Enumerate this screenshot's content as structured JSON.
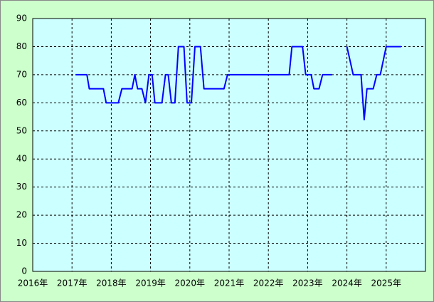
{
  "chart_data": {
    "type": "line",
    "xlim": [
      2016,
      2026
    ],
    "ylim": [
      0,
      90
    ],
    "xticks": [
      {
        "value": 2016,
        "label": "2016年"
      },
      {
        "value": 2017,
        "label": "2017年"
      },
      {
        "value": 2018,
        "label": "2018年"
      },
      {
        "value": 2019,
        "label": "2019年"
      },
      {
        "value": 2020,
        "label": "2020年"
      },
      {
        "value": 2021,
        "label": "2021年"
      },
      {
        "value": 2022,
        "label": "2022年"
      },
      {
        "value": 2023,
        "label": "2023年"
      },
      {
        "value": 2024,
        "label": "2024年"
      },
      {
        "value": 2025,
        "label": "2025年"
      }
    ],
    "yticks": [
      0,
      10,
      20,
      30,
      40,
      50,
      60,
      70,
      80,
      90
    ],
    "grid": true,
    "x": [
      2017.09,
      2017.38,
      2017.44,
      2017.8,
      2017.87,
      2018.18,
      2018.27,
      2018.53,
      2018.6,
      2018.67,
      2018.78,
      2018.87,
      2018.96,
      2019.04,
      2019.11,
      2019.29,
      2019.38,
      2019.45,
      2019.53,
      2019.62,
      2019.71,
      2019.85,
      2019.93,
      2020.04,
      2020.13,
      2020.27,
      2020.36,
      2020.87,
      2020.96,
      2022.53,
      2022.6,
      2022.87,
      2022.95,
      2023.09,
      2023.16,
      2023.29,
      2023.38,
      2023.62,
      2023.8,
      2024.0,
      2024.16,
      2024.36,
      2024.44,
      2024.51,
      2024.67,
      2024.76,
      2024.85,
      2025.0,
      2025.38
    ],
    "series": [
      {
        "color": "#0000ff",
        "values": [
          70,
          70,
          65,
          65,
          60,
          60,
          65,
          65,
          70,
          65,
          65,
          60,
          70,
          70,
          60,
          60,
          70,
          70,
          60,
          60,
          80,
          80,
          60,
          60,
          80,
          80,
          65,
          65,
          70,
          70,
          80,
          80,
          70,
          70,
          65,
          65,
          70,
          70,
          null,
          80,
          70,
          70,
          54,
          65,
          65,
          70,
          70,
          80,
          80
        ]
      }
    ]
  }
}
